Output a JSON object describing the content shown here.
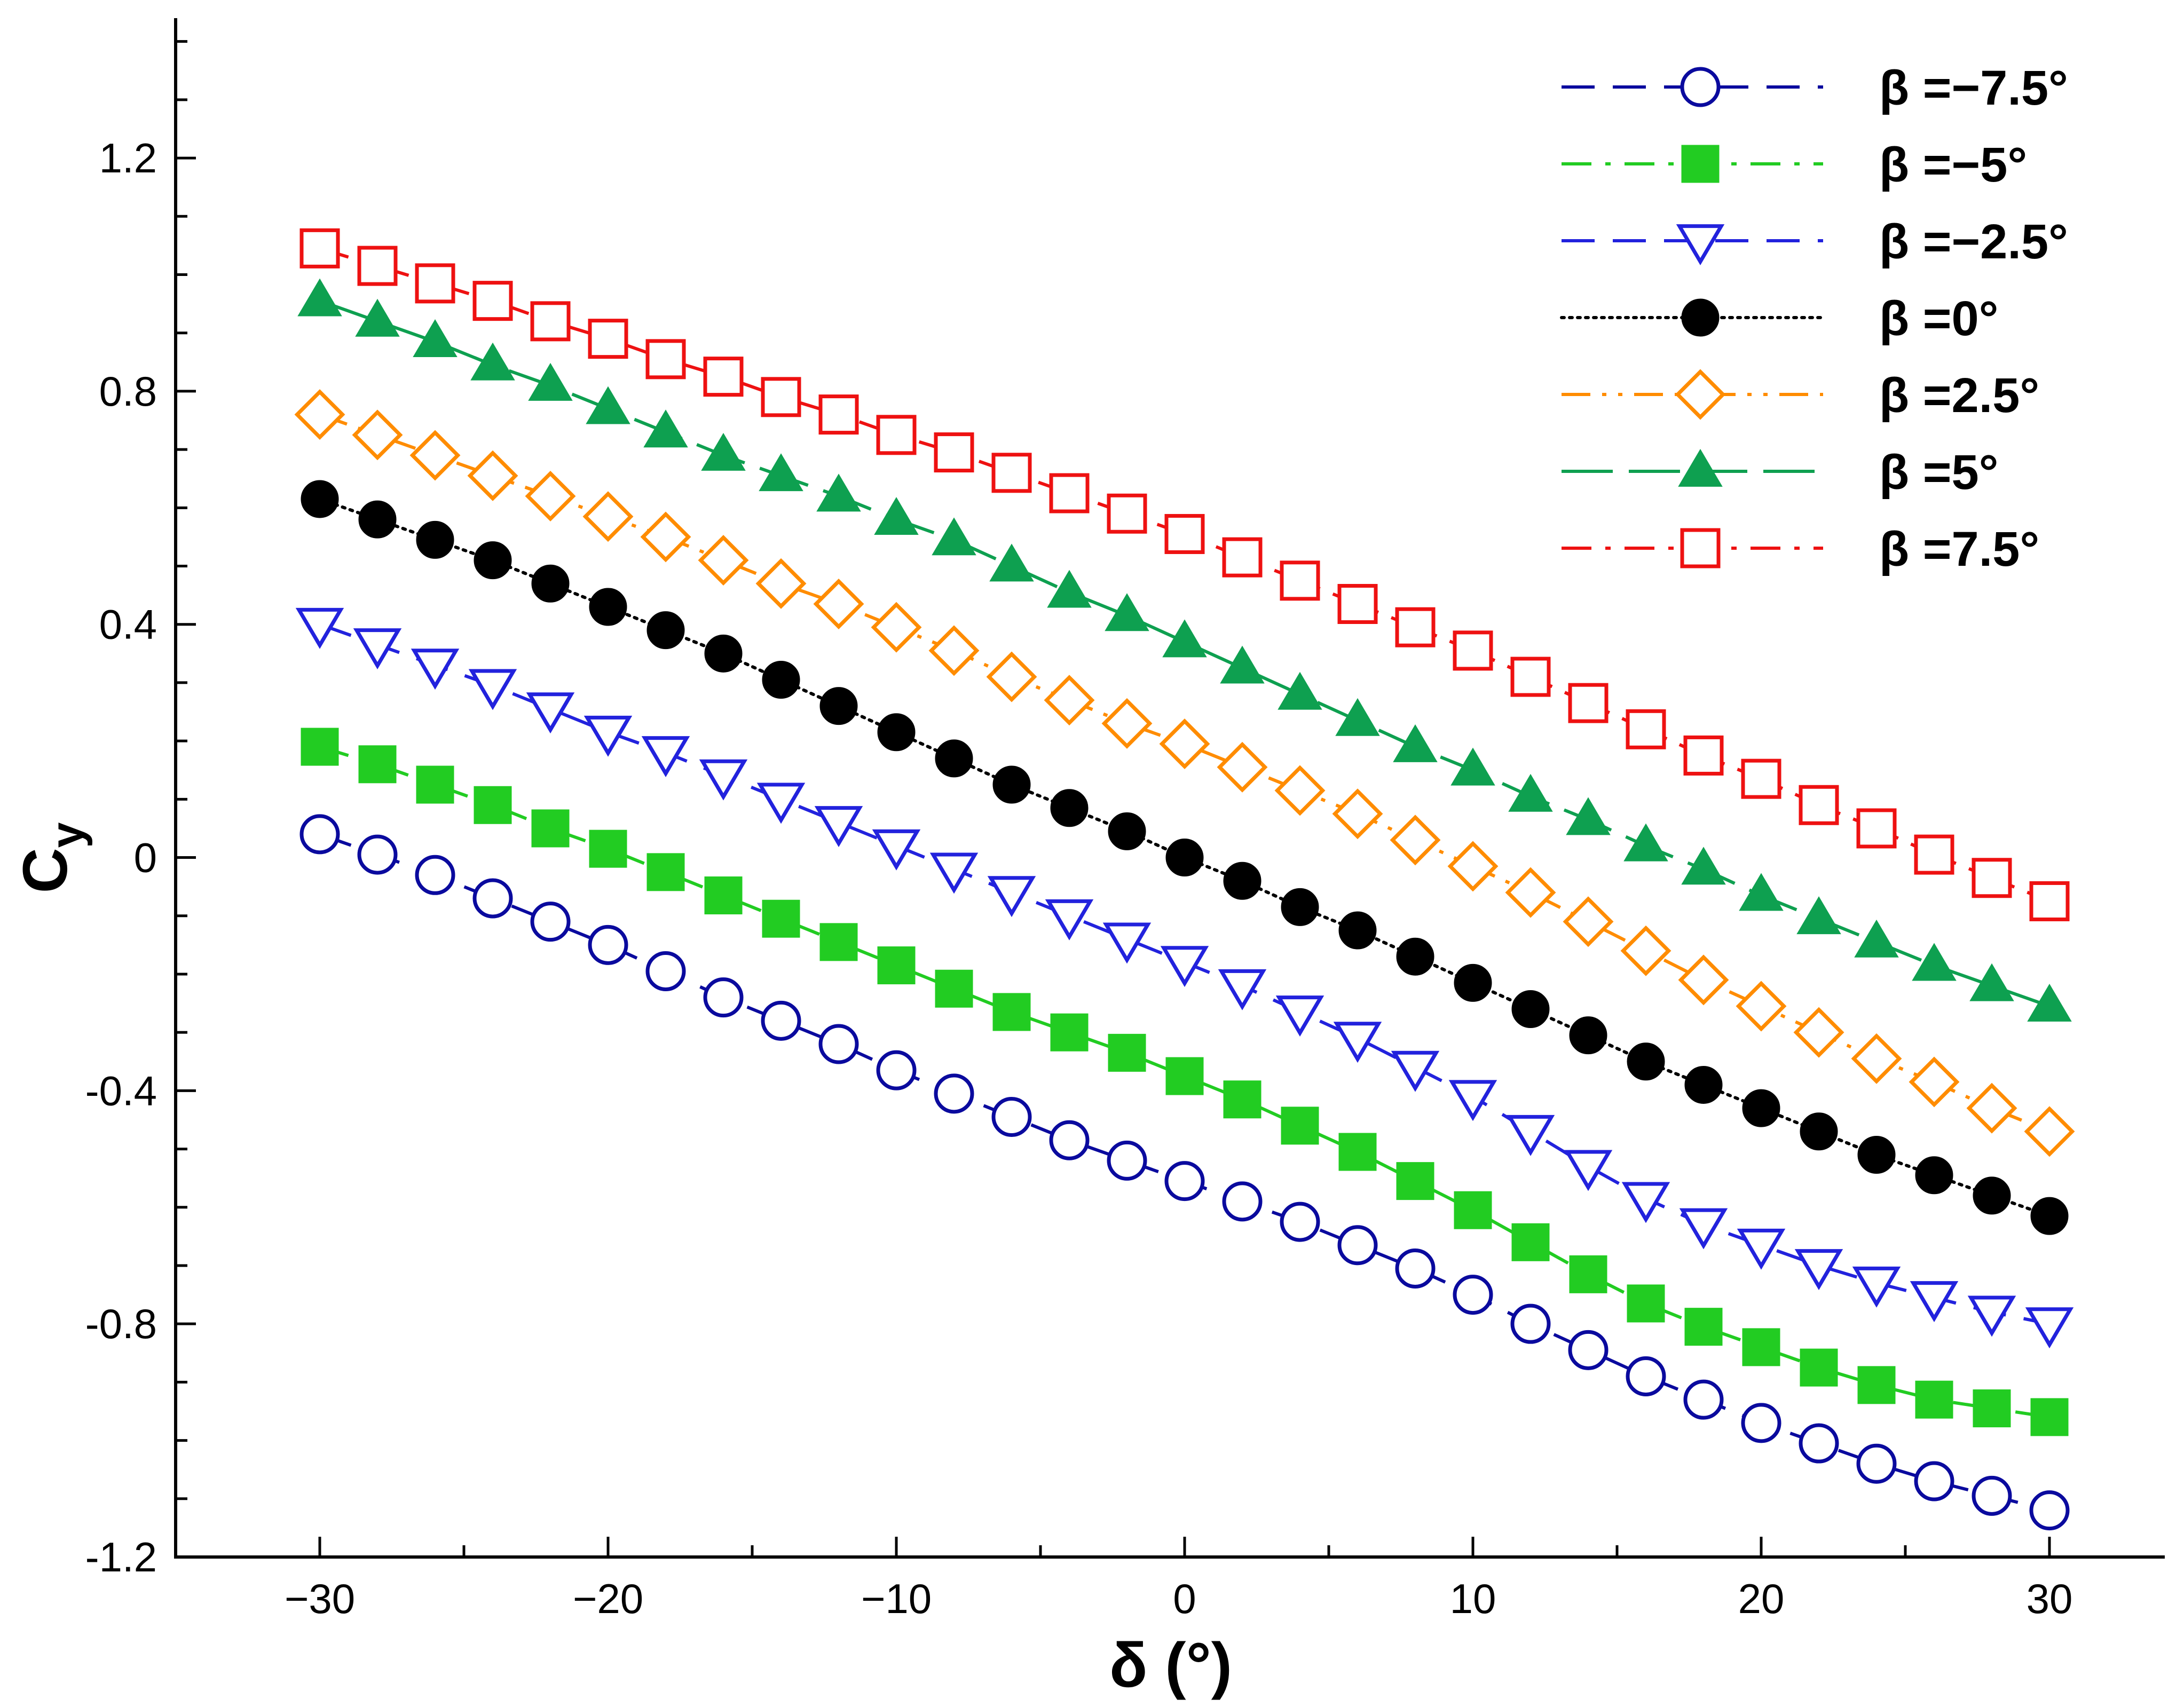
{
  "chart_data": {
    "type": "line",
    "title": "",
    "xlabel": "δ (°)",
    "ylabel_main": "C",
    "ylabel_sub": "y",
    "xlim": [
      -35,
      34
    ],
    "ylim": [
      -1.2,
      1.44
    ],
    "x_ticks": [
      -30,
      -20,
      -10,
      0,
      10,
      20,
      30
    ],
    "x_tick_labels": [
      "−30",
      "−20",
      "−10",
      "0",
      "10",
      "20",
      "30"
    ],
    "y_ticks": [
      -1.2,
      -0.8,
      -0.4,
      0,
      0.4,
      0.8,
      1.2
    ],
    "y_tick_labels": [
      "-1.2",
      "-0.8",
      "-0.4",
      "0",
      "0.4",
      "0.8",
      "1.2"
    ],
    "x_minor_step": 5,
    "y_minor_step": 0.1,
    "grid": false,
    "legend_position": "top-right",
    "x": [
      -30,
      -28,
      -26,
      -24,
      -22,
      -20,
      -18,
      -16,
      -14,
      -12,
      -10,
      -8,
      -6,
      -4,
      -2,
      0,
      2,
      4,
      6,
      8,
      10,
      12,
      14,
      16,
      18,
      20,
      22,
      24,
      26,
      28,
      30
    ],
    "series": [
      {
        "name": "β =−7.5°",
        "color": "#0a0a9e",
        "dash": "dashed",
        "marker": "circle-open",
        "values": [
          0.04,
          0.005,
          -0.03,
          -0.07,
          -0.11,
          -0.15,
          -0.195,
          -0.24,
          -0.28,
          -0.32,
          -0.365,
          -0.405,
          -0.445,
          -0.485,
          -0.52,
          -0.555,
          -0.59,
          -0.625,
          -0.665,
          -0.705,
          -0.75,
          -0.8,
          -0.845,
          -0.89,
          -0.93,
          -0.97,
          -1.005,
          -1.04,
          -1.07,
          -1.095,
          -1.12
        ]
      },
      {
        "name": "β =−5°",
        "color": "#22cc22",
        "dash": "dashdot",
        "marker": "square-filled",
        "values": [
          0.19,
          0.16,
          0.125,
          0.09,
          0.05,
          0.015,
          -0.025,
          -0.065,
          -0.105,
          -0.145,
          -0.185,
          -0.225,
          -0.265,
          -0.3,
          -0.335,
          -0.375,
          -0.415,
          -0.46,
          -0.505,
          -0.555,
          -0.605,
          -0.66,
          -0.715,
          -0.765,
          -0.805,
          -0.84,
          -0.875,
          -0.905,
          -0.93,
          -0.945,
          -0.96
        ]
      },
      {
        "name": "β =−2.5°",
        "color": "#2222dd",
        "dash": "dashed",
        "marker": "triangle-down-open",
        "values": [
          0.4,
          0.365,
          0.33,
          0.295,
          0.255,
          0.215,
          0.18,
          0.14,
          0.1,
          0.06,
          0.02,
          -0.02,
          -0.06,
          -0.1,
          -0.14,
          -0.18,
          -0.22,
          -0.265,
          -0.31,
          -0.36,
          -0.41,
          -0.47,
          -0.53,
          -0.585,
          -0.63,
          -0.665,
          -0.7,
          -0.73,
          -0.755,
          -0.78,
          -0.8
        ]
      },
      {
        "name": "β =0°",
        "color": "#000000",
        "dash": "dotted",
        "marker": "circle-filled",
        "values": [
          0.615,
          0.58,
          0.545,
          0.51,
          0.47,
          0.43,
          0.39,
          0.35,
          0.305,
          0.26,
          0.215,
          0.17,
          0.125,
          0.085,
          0.045,
          0.0,
          -0.04,
          -0.085,
          -0.125,
          -0.17,
          -0.215,
          -0.26,
          -0.305,
          -0.35,
          -0.39,
          -0.43,
          -0.47,
          -0.51,
          -0.545,
          -0.58,
          -0.615
        ]
      },
      {
        "name": "β =2.5°",
        "color": "#ff8c00",
        "dash": "dashdotdot",
        "marker": "diamond-open",
        "values": [
          0.76,
          0.725,
          0.69,
          0.655,
          0.62,
          0.585,
          0.55,
          0.51,
          0.47,
          0.435,
          0.395,
          0.355,
          0.31,
          0.27,
          0.23,
          0.195,
          0.155,
          0.115,
          0.075,
          0.03,
          -0.015,
          -0.06,
          -0.11,
          -0.16,
          -0.21,
          -0.255,
          -0.3,
          -0.345,
          -0.385,
          -0.43,
          -0.47
        ]
      },
      {
        "name": "β =5°",
        "color": "#0ea050",
        "dash": "longdash",
        "marker": "triangle-up-filled",
        "values": [
          0.955,
          0.92,
          0.885,
          0.845,
          0.81,
          0.77,
          0.73,
          0.69,
          0.655,
          0.62,
          0.58,
          0.545,
          0.5,
          0.455,
          0.415,
          0.37,
          0.325,
          0.28,
          0.235,
          0.19,
          0.15,
          0.105,
          0.065,
          0.02,
          -0.02,
          -0.065,
          -0.105,
          -0.145,
          -0.185,
          -0.22,
          -0.255
        ]
      },
      {
        "name": "β =7.5°",
        "color": "#ee1111",
        "dash": "dashdot",
        "marker": "square-open",
        "values": [
          1.045,
          1.015,
          0.985,
          0.955,
          0.92,
          0.89,
          0.855,
          0.825,
          0.79,
          0.76,
          0.725,
          0.695,
          0.66,
          0.625,
          0.59,
          0.555,
          0.515,
          0.475,
          0.435,
          0.395,
          0.355,
          0.31,
          0.265,
          0.22,
          0.175,
          0.135,
          0.09,
          0.05,
          0.005,
          -0.035,
          -0.075
        ]
      }
    ]
  }
}
